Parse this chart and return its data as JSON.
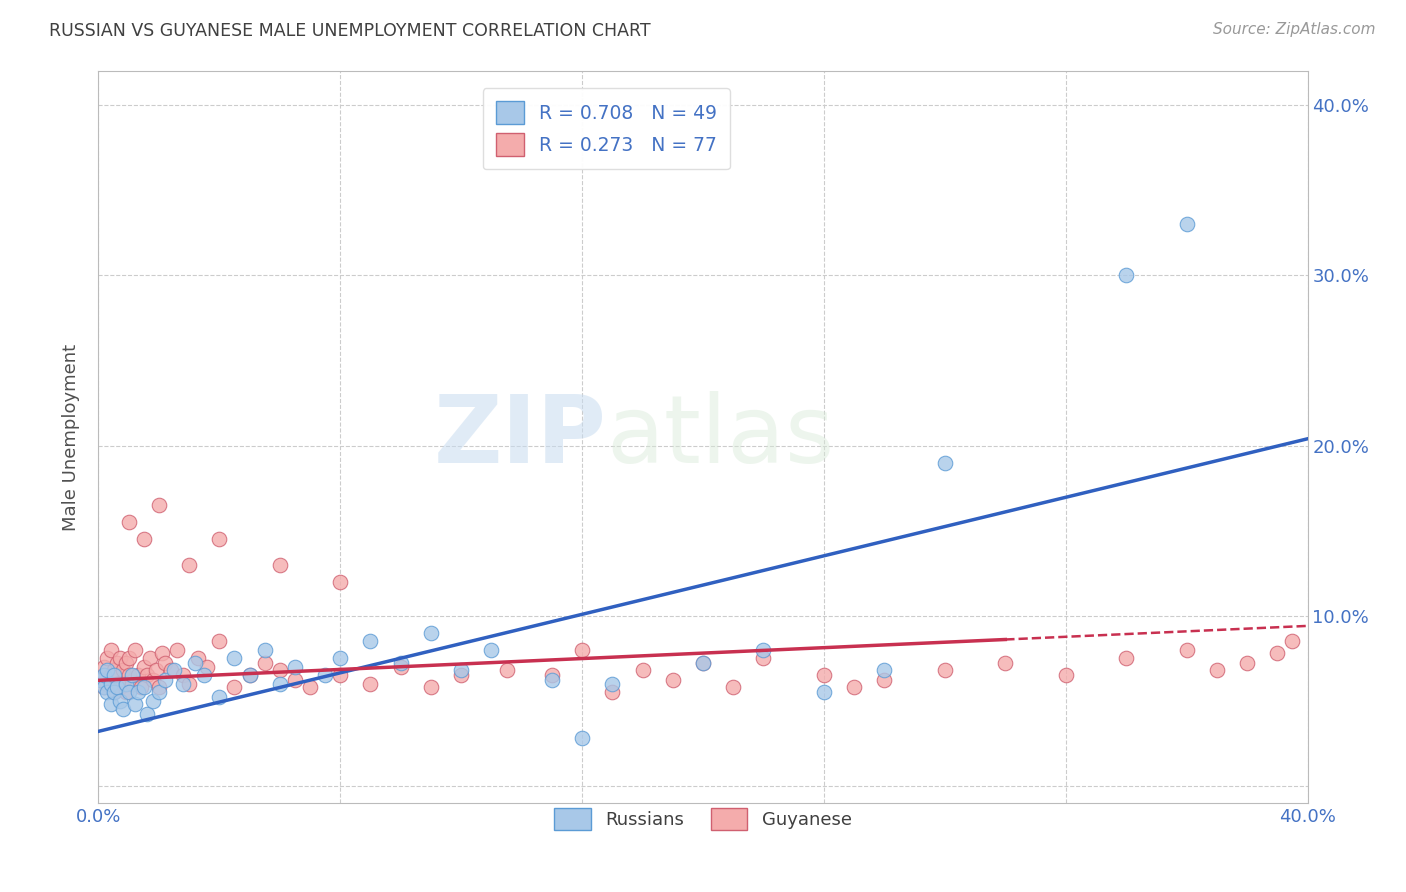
{
  "title": "RUSSIAN VS GUYANESE MALE UNEMPLOYMENT CORRELATION CHART",
  "source": "Source: ZipAtlas.com",
  "ylabel": "Male Unemployment",
  "russian_R": 0.708,
  "russian_N": 49,
  "guyanese_R": 0.273,
  "guyanese_N": 77,
  "russian_color": "#A8C8E8",
  "russian_edge": "#5B9BD5",
  "guyanese_color": "#F4ACAC",
  "guyanese_edge": "#D06070",
  "russian_line_color": "#3060C0",
  "guyanese_line_color": "#C83050",
  "background_color": "#FFFFFF",
  "grid_color": "#CCCCCC",
  "title_color": "#404040",
  "axis_label_color": "#505050",
  "tick_label_color": "#4472C4",
  "xlim": [
    0.0,
    0.4
  ],
  "ylim": [
    -0.01,
    0.42
  ],
  "xticks": [
    0.0,
    0.08,
    0.16,
    0.24,
    0.32,
    0.4
  ],
  "xticklabels": [
    "0.0%",
    "",
    "",
    "",
    "",
    "40.0%"
  ],
  "yticks": [
    0.0,
    0.1,
    0.2,
    0.3,
    0.4
  ],
  "yticklabels_right": [
    "",
    "10.0%",
    "20.0%",
    "30.0%",
    "40.0%"
  ],
  "russians_x": [
    0.001,
    0.002,
    0.002,
    0.003,
    0.003,
    0.004,
    0.004,
    0.005,
    0.005,
    0.006,
    0.007,
    0.008,
    0.009,
    0.01,
    0.011,
    0.012,
    0.013,
    0.015,
    0.016,
    0.018,
    0.02,
    0.022,
    0.025,
    0.028,
    0.032,
    0.035,
    0.04,
    0.045,
    0.05,
    0.055,
    0.06,
    0.065,
    0.075,
    0.08,
    0.09,
    0.1,
    0.11,
    0.12,
    0.13,
    0.15,
    0.16,
    0.17,
    0.2,
    0.22,
    0.24,
    0.26,
    0.28,
    0.34,
    0.36
  ],
  "russians_y": [
    0.062,
    0.058,
    0.065,
    0.055,
    0.068,
    0.06,
    0.048,
    0.065,
    0.055,
    0.058,
    0.05,
    0.045,
    0.06,
    0.055,
    0.065,
    0.048,
    0.055,
    0.058,
    0.042,
    0.05,
    0.055,
    0.062,
    0.068,
    0.06,
    0.072,
    0.065,
    0.052,
    0.075,
    0.065,
    0.08,
    0.06,
    0.07,
    0.065,
    0.075,
    0.085,
    0.072,
    0.09,
    0.068,
    0.08,
    0.062,
    0.028,
    0.06,
    0.072,
    0.08,
    0.055,
    0.068,
    0.19,
    0.3,
    0.33
  ],
  "guyanese_x": [
    0.001,
    0.002,
    0.002,
    0.003,
    0.003,
    0.004,
    0.004,
    0.005,
    0.005,
    0.006,
    0.006,
    0.007,
    0.007,
    0.008,
    0.008,
    0.009,
    0.009,
    0.01,
    0.01,
    0.011,
    0.012,
    0.013,
    0.014,
    0.015,
    0.016,
    0.017,
    0.018,
    0.019,
    0.02,
    0.021,
    0.022,
    0.024,
    0.026,
    0.028,
    0.03,
    0.033,
    0.036,
    0.04,
    0.045,
    0.05,
    0.055,
    0.06,
    0.065,
    0.07,
    0.08,
    0.09,
    0.1,
    0.11,
    0.12,
    0.135,
    0.15,
    0.16,
    0.17,
    0.18,
    0.19,
    0.2,
    0.21,
    0.22,
    0.24,
    0.25,
    0.26,
    0.28,
    0.3,
    0.32,
    0.34,
    0.36,
    0.37,
    0.38,
    0.39,
    0.395,
    0.01,
    0.015,
    0.02,
    0.03,
    0.04,
    0.06,
    0.08
  ],
  "guyanese_y": [
    0.062,
    0.07,
    0.058,
    0.075,
    0.06,
    0.08,
    0.065,
    0.068,
    0.055,
    0.072,
    0.06,
    0.075,
    0.058,
    0.068,
    0.06,
    0.072,
    0.055,
    0.065,
    0.075,
    0.06,
    0.08,
    0.065,
    0.058,
    0.07,
    0.065,
    0.075,
    0.062,
    0.068,
    0.058,
    0.078,
    0.072,
    0.068,
    0.08,
    0.065,
    0.06,
    0.075,
    0.07,
    0.085,
    0.058,
    0.065,
    0.072,
    0.068,
    0.062,
    0.058,
    0.065,
    0.06,
    0.07,
    0.058,
    0.065,
    0.068,
    0.065,
    0.08,
    0.055,
    0.068,
    0.062,
    0.072,
    0.058,
    0.075,
    0.065,
    0.058,
    0.062,
    0.068,
    0.072,
    0.065,
    0.075,
    0.08,
    0.068,
    0.072,
    0.078,
    0.085,
    0.155,
    0.145,
    0.165,
    0.13,
    0.145,
    0.13,
    0.12
  ],
  "watermark_zip": "ZIP",
  "watermark_atlas": "atlas"
}
